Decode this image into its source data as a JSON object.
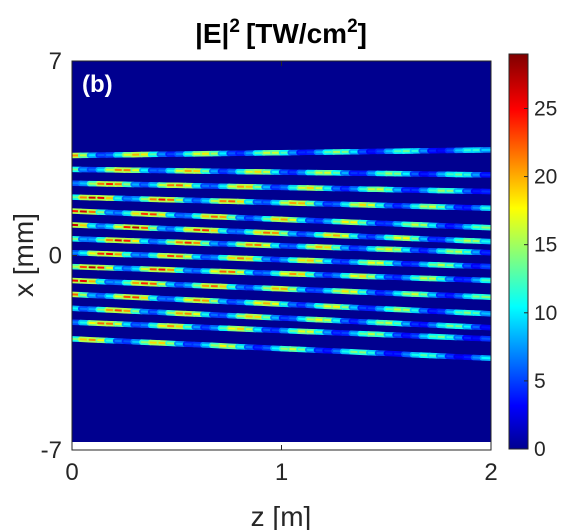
{
  "chart_data": {
    "type": "heatmap",
    "title": "|E|",
    "title_sup": "2",
    "title_unit": "[TW/cm",
    "title_unit_sup": "2",
    "title_unit_close": "]",
    "panel_label": "(b)",
    "xlabel": "z [m]",
    "ylabel": "x [mm]",
    "xlim": [
      0,
      2
    ],
    "ylim": [
      -7,
      7
    ],
    "xticks": [
      "0",
      "1",
      "2"
    ],
    "yticks": [
      "-7",
      "0",
      "7"
    ],
    "colormap": "jet",
    "colorbar": {
      "range": [
        0,
        29
      ],
      "ticks": [
        "0",
        "5",
        "10",
        "15",
        "20",
        "25"
      ],
      "tick_values": [
        0,
        5,
        10,
        15,
        20,
        25
      ]
    },
    "background_color": "#00008f",
    "filaments": [
      {
        "x0": 3.6,
        "x2": 3.8,
        "peak": 22
      },
      {
        "x0": 3.1,
        "x2": 2.9,
        "peak": 24
      },
      {
        "x0": 2.6,
        "x2": 2.3,
        "peak": 26
      },
      {
        "x0": 2.1,
        "x2": 1.7,
        "peak": 28
      },
      {
        "x0": 1.6,
        "x2": 1.0,
        "peak": 27
      },
      {
        "x0": 1.1,
        "x2": 0.5,
        "peak": 29
      },
      {
        "x0": 0.6,
        "x2": 0.1,
        "peak": 28
      },
      {
        "x0": 0.1,
        "x2": -0.4,
        "peak": 27
      },
      {
        "x0": -0.4,
        "x2": -0.9,
        "peak": 28
      },
      {
        "x0": -0.9,
        "x2": -1.5,
        "peak": 27
      },
      {
        "x0": -1.4,
        "x2": -2.1,
        "peak": 26
      },
      {
        "x0": -1.9,
        "x2": -2.6,
        "peak": 25
      },
      {
        "x0": -2.4,
        "x2": -3.0,
        "peak": 24
      },
      {
        "x0": -3.0,
        "x2": -3.7,
        "peak": 22
      }
    ]
  }
}
